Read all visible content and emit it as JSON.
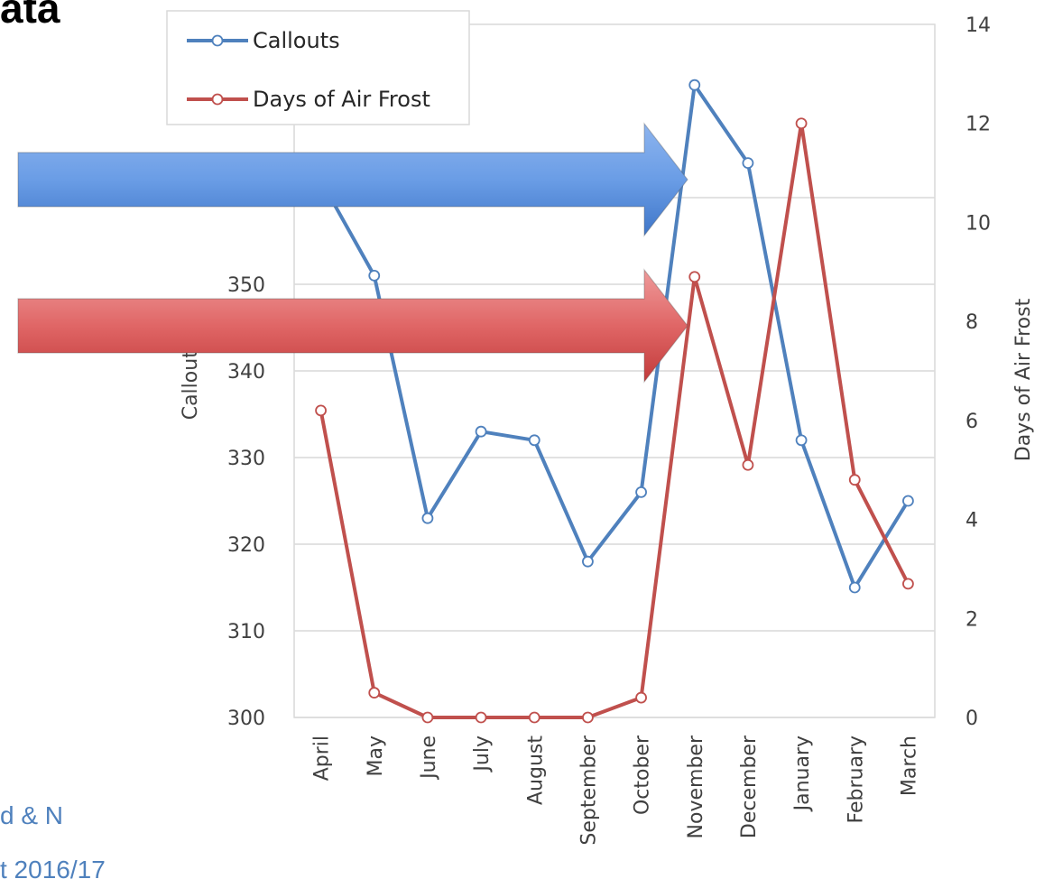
{
  "slide": {
    "title_fragment": "ata",
    "footer_line1": "d & N",
    "footer_line2": "t 2016/17"
  },
  "chart_data": {
    "type": "line",
    "categories": [
      "April",
      "May",
      "June",
      "July",
      "August",
      "September",
      "October",
      "November",
      "December",
      "January",
      "February",
      "March"
    ],
    "series": [
      {
        "name": "Callouts",
        "axis": "left",
        "color": "#4f81bd",
        "values": [
          362,
          351,
          323,
          333,
          332,
          318,
          326,
          373,
          364,
          332,
          315,
          325
        ]
      },
      {
        "name": "Days of Air Frost",
        "axis": "right",
        "color": "#c0504d",
        "values": [
          6.2,
          0.5,
          0.0,
          0.0,
          0.0,
          0.0,
          0.4,
          8.9,
          5.1,
          12.0,
          4.8,
          2.7
        ]
      }
    ],
    "ylabel": "Callouts",
    "y2label": "Days of Air Frost",
    "ylim": [
      300,
      380
    ],
    "y_ticks": [
      "300",
      "310",
      "320",
      "330",
      "340",
      "350",
      "360"
    ],
    "y2lim": [
      0,
      14
    ],
    "y2_ticks": [
      "0",
      "2",
      "4",
      "6",
      "8",
      "10",
      "12",
      "14"
    ],
    "grid": true,
    "legend": "top-left",
    "annotations": [
      {
        "type": "arrow",
        "color": "#6a9de6",
        "points_to": "November Callouts"
      },
      {
        "type": "arrow",
        "color": "#e06666",
        "points_to": "November Days of Air Frost"
      }
    ]
  }
}
